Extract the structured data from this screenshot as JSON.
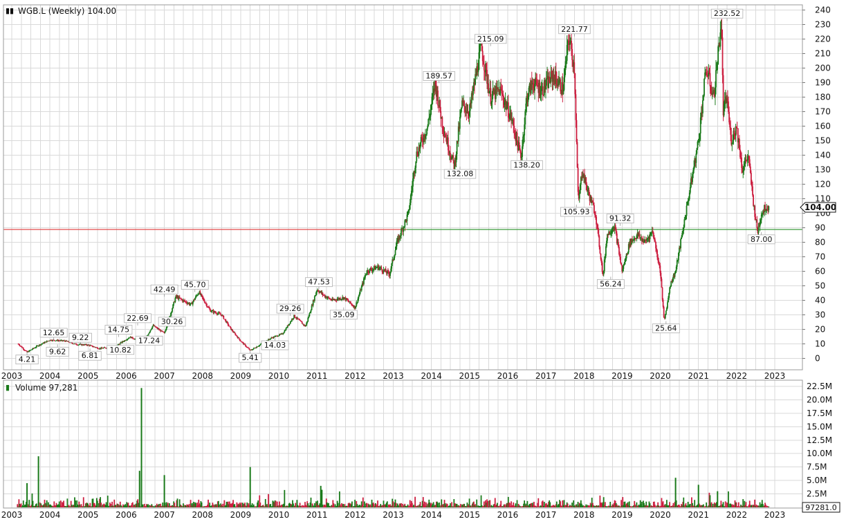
{
  "chart_data": [
    {
      "type": "candlestick",
      "title": "WGB.L (Weekly) 104.00",
      "x_range": [
        2003,
        2023
      ],
      "ylim": [
        -10,
        240
      ],
      "y_ticks": [
        0,
        10,
        20,
        30,
        40,
        50,
        60,
        70,
        80,
        90,
        100,
        110,
        120,
        130,
        140,
        150,
        160,
        170,
        180,
        190,
        200,
        210,
        220,
        230,
        240
      ],
      "x_ticks": [
        "2003",
        "2004",
        "2005",
        "2006",
        "2007",
        "2008",
        "2009",
        "2010",
        "2011",
        "2012",
        "2013",
        "2014",
        "2015",
        "2016",
        "2017",
        "2018",
        "2019",
        "2020",
        "2021",
        "2022",
        "2023"
      ],
      "last_price": "104.00",
      "reference_line": 88.8,
      "colors": {
        "up": "#1a7a1a",
        "down": "#cc1f40",
        "line_below": "#e24a4a",
        "line_above": "#3c9a3c"
      },
      "series": [
        {
          "x": [
            2003.17,
            2003.4,
            2003.7,
            2004.0,
            2004.4,
            2004.7,
            2005.0,
            2005.3,
            2005.7,
            2006.1,
            2006.45,
            2006.7,
            2007.0,
            2007.3,
            2007.7,
            2007.9,
            2008.2,
            2008.5,
            2008.75,
            2009.0,
            2009.25,
            2009.55,
            2009.8,
            2010.1,
            2010.4,
            2010.7,
            2011.0,
            2011.2,
            2011.4,
            2011.7,
            2012.0,
            2012.3,
            2012.6,
            2012.9,
            2013.1,
            2013.4,
            2013.6,
            2013.9,
            2014.1,
            2014.3,
            2014.6,
            2014.8,
            2015.0,
            2015.3,
            2015.55,
            2015.8,
            2016.1,
            2016.35,
            2016.5,
            2016.65,
            2016.9,
            2017.2,
            2017.45,
            2017.6,
            2017.75,
            2017.85,
            2017.95,
            2018.1,
            2018.3,
            2018.5,
            2018.6,
            2018.8,
            2019.0,
            2019.2,
            2019.4,
            2019.6,
            2019.8,
            2020.0,
            2020.1,
            2020.2,
            2020.25,
            2020.4,
            2020.6,
            2020.8,
            2021.0,
            2021.2,
            2021.4,
            2021.6,
            2021.65,
            2021.75,
            2021.85,
            2022.0,
            2022.15,
            2022.3,
            2022.45,
            2022.55,
            2022.65,
            2022.75,
            2022.85
          ],
          "values": [
            10,
            4.21,
            9,
            12.65,
            12,
            9.62,
            9.22,
            6.81,
            8,
            14.75,
            10.82,
            22.69,
            17.24,
            42.49,
            37,
            45.7,
            33,
            30,
            20,
            12,
            5.41,
            10,
            14.03,
            17,
            29.26,
            22,
            47.53,
            43,
            40,
            42,
            35.09,
            60,
            63,
            58,
            80,
            100,
            140,
            160,
            189.57,
            160,
            132.08,
            175,
            170,
            215.09,
            180,
            185,
            165,
            138.2,
            180,
            190,
            185,
            195,
            185,
            221.77,
            200,
            105.93,
            130,
            115,
            100,
            56.24,
            85,
            91.32,
            60,
            80,
            85,
            80,
            88,
            60,
            25.64,
            40,
            50,
            60,
            90,
            120,
            150,
            200,
            180,
            232.52,
            170,
            180,
            150,
            160,
            130,
            140,
            105,
            87,
            100,
            104,
            104
          ]
        }
      ],
      "annotations": [
        {
          "x": 2003.4,
          "y": 4.21,
          "text": "4.21",
          "pos": "below"
        },
        {
          "x": 2004.1,
          "y": 12.65,
          "text": "12.65",
          "pos": "above"
        },
        {
          "x": 2004.2,
          "y": 9.62,
          "text": "9.62",
          "pos": "below"
        },
        {
          "x": 2004.8,
          "y": 9.22,
          "text": "9.22",
          "pos": "above"
        },
        {
          "x": 2005.05,
          "y": 6.81,
          "text": "6.81",
          "pos": "below"
        },
        {
          "x": 2005.8,
          "y": 14.75,
          "text": "14.75",
          "pos": "above"
        },
        {
          "x": 2005.85,
          "y": 10.82,
          "text": "10.82",
          "pos": "below"
        },
        {
          "x": 2006.3,
          "y": 22.69,
          "text": "22.69",
          "pos": "above"
        },
        {
          "x": 2006.6,
          "y": 17.24,
          "text": "17.24",
          "pos": "below"
        },
        {
          "x": 2007.0,
          "y": 42.49,
          "text": "42.49",
          "pos": "above"
        },
        {
          "x": 2007.2,
          "y": 30.26,
          "text": "30.26",
          "pos": "below"
        },
        {
          "x": 2007.8,
          "y": 45.7,
          "text": "45.70",
          "pos": "above"
        },
        {
          "x": 2009.25,
          "y": 5.41,
          "text": "5.41",
          "pos": "below"
        },
        {
          "x": 2010.3,
          "y": 29.26,
          "text": "29.26",
          "pos": "above"
        },
        {
          "x": 2009.9,
          "y": 14.03,
          "text": "14.03",
          "pos": "below"
        },
        {
          "x": 2011.05,
          "y": 47.53,
          "text": "47.53",
          "pos": "above"
        },
        {
          "x": 2011.7,
          "y": 35.09,
          "text": "35.09",
          "pos": "below"
        },
        {
          "x": 2014.2,
          "y": 189.57,
          "text": "189.57",
          "pos": "above"
        },
        {
          "x": 2014.75,
          "y": 132.08,
          "text": "132.08",
          "pos": "below"
        },
        {
          "x": 2015.55,
          "y": 215.09,
          "text": "215.09",
          "pos": "above"
        },
        {
          "x": 2016.5,
          "y": 138.2,
          "text": "138.20",
          "pos": "below"
        },
        {
          "x": 2017.75,
          "y": 221.77,
          "text": "221.77",
          "pos": "above"
        },
        {
          "x": 2017.8,
          "y": 105.93,
          "text": "105.93",
          "pos": "below"
        },
        {
          "x": 2018.95,
          "y": 91.32,
          "text": "91.32",
          "pos": "above"
        },
        {
          "x": 2018.7,
          "y": 56.24,
          "text": "56.24",
          "pos": "below"
        },
        {
          "x": 2020.15,
          "y": 25.64,
          "text": "25.64",
          "pos": "below"
        },
        {
          "x": 2021.75,
          "y": 232.52,
          "text": "232.52",
          "pos": "above"
        },
        {
          "x": 2022.65,
          "y": 87.0,
          "text": "87.00",
          "pos": "below"
        }
      ]
    },
    {
      "type": "bar",
      "title": "Volume 97,281",
      "x_range": [
        2003,
        2023
      ],
      "ylim": [
        0,
        22500000
      ],
      "y_ticks": [
        "22.5M",
        "20.0M",
        "17.5M",
        "15.0M",
        "12.5M",
        "10.0M",
        "7.5M",
        "5.0M",
        "2.5M"
      ],
      "x_ticks": [
        "2003",
        "2004",
        "2005",
        "2006",
        "2007",
        "2008",
        "2009",
        "2010",
        "2011",
        "2012",
        "2013",
        "2014",
        "2015",
        "2016",
        "2017",
        "2018",
        "2019",
        "2020",
        "2021",
        "2022",
        "2023"
      ],
      "last_volume": "97281.0",
      "spikes": [
        {
          "x": 2003.4,
          "value": 4500000
        },
        {
          "x": 2003.7,
          "value": 9500000
        },
        {
          "x": 2006.4,
          "value": 22200000
        },
        {
          "x": 2006.35,
          "value": 6800000
        },
        {
          "x": 2007.0,
          "value": 6000000
        },
        {
          "x": 2009.25,
          "value": 7500000
        },
        {
          "x": 2011.1,
          "value": 4000000
        },
        {
          "x": 2020.4,
          "value": 5500000
        },
        {
          "x": 2021.0,
          "value": 4200000
        },
        {
          "x": 2021.5,
          "value": 3000000
        }
      ]
    }
  ]
}
